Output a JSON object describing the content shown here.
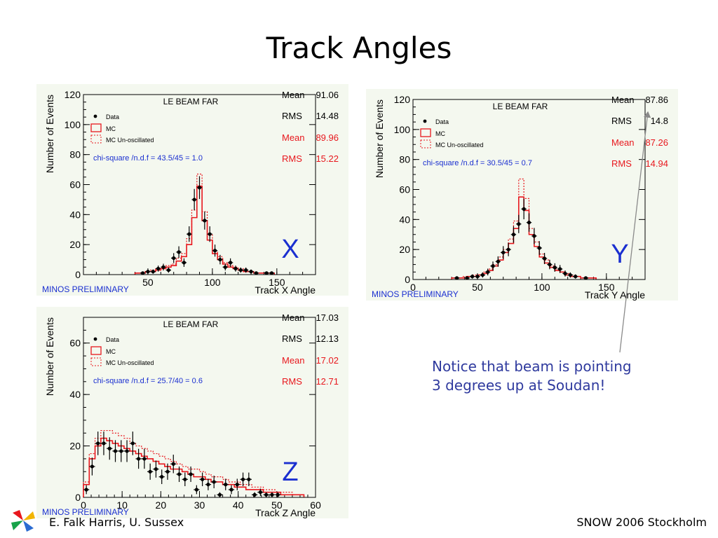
{
  "slide": {
    "title": "Track Angles",
    "note_line1": "Notice that beam is pointing",
    "note_line2": "3 degrees up at Soudan!",
    "footer_left": "E. Falk Harris, U. Sussex",
    "footer_right": "SNOW 2006 Stockholm"
  },
  "colors": {
    "data": "#000000",
    "mc": "#e8171d",
    "stats_blue": "#1a2fd0",
    "note": "#2f3a9e",
    "plot_bg": "#f4f8ef"
  },
  "chart_data": [
    {
      "type": "bar",
      "id": "x",
      "title": "LE BEAM FAR",
      "xlabel": "Track X Angle",
      "ylabel": "Number of Events",
      "big_label": "X",
      "preliminary": "MINOS PRELIMINARY",
      "xlim": [
        0,
        180
      ],
      "ylim": [
        0,
        120
      ],
      "xticks": [
        0,
        50,
        100,
        150
      ],
      "xtick_labels": [
        "",
        "50",
        "100",
        "150"
      ],
      "yticks": [
        0,
        20,
        40,
        60,
        80,
        100,
        120
      ],
      "legend": [
        "Data",
        "MC",
        "MC Un-oscillated"
      ],
      "chi_square": "chi-square /n.d.f =  43.5/45 =   1.0",
      "stats": {
        "mean_label": "Mean",
        "mean": "91.06",
        "rms_label": "RMS",
        "rms": "14.48",
        "mc_mean_label": "Mean",
        "mc_mean": "89.96",
        "mc_rms_label": "RMS",
        "mc_rms": "15.22"
      },
      "bin_width": 4,
      "data_x": [
        46,
        50,
        54,
        58,
        62,
        66,
        70,
        74,
        78,
        82,
        86,
        90,
        94,
        98,
        102,
        106,
        110,
        114,
        118,
        122,
        126,
        130,
        134,
        142,
        146
      ],
      "data_y": [
        1,
        2,
        2,
        4,
        5,
        3,
        11,
        15,
        8,
        27,
        50,
        58,
        36,
        27,
        16,
        10,
        5,
        8,
        4,
        3,
        3,
        2,
        1,
        1,
        1
      ],
      "mc_edges": [
        40,
        44,
        48,
        52,
        56,
        60,
        64,
        68,
        72,
        76,
        80,
        84,
        88,
        92,
        96,
        100,
        104,
        108,
        112,
        116,
        120,
        124,
        128,
        132,
        136,
        140,
        144,
        148
      ],
      "mc_values": [
        1,
        1,
        2,
        2,
        3,
        4,
        5,
        6,
        9,
        12,
        20,
        38,
        59,
        36,
        23,
        14,
        10,
        7,
        5,
        4,
        3,
        2,
        2,
        1,
        1,
        1,
        1
      ],
      "unosc_values": [
        1,
        1,
        2,
        3,
        4,
        5,
        6,
        7,
        11,
        14,
        24,
        43,
        67,
        42,
        27,
        16,
        12,
        8,
        6,
        5,
        4,
        3,
        2,
        1,
        1,
        1,
        1
      ]
    },
    {
      "type": "bar",
      "id": "y",
      "title": "LE BEAM FAR",
      "xlabel": "Track Y Angle",
      "ylabel": "Number of Events",
      "big_label": "Y",
      "preliminary": "MINOS PRELIMINARY",
      "xlim": [
        0,
        180
      ],
      "ylim": [
        0,
        120
      ],
      "xticks": [
        0,
        50,
        100,
        150
      ],
      "xtick_labels": [
        "0",
        "50",
        "100",
        "150"
      ],
      "yticks": [
        0,
        20,
        40,
        60,
        80,
        100,
        120
      ],
      "legend": [
        "Data",
        "MC",
        "MC Un-oscillated"
      ],
      "chi_square": "chi-square /n.d.f =  30.5/45 =   0.7",
      "stats": {
        "mean_label": "Mean",
        "mean": "87.86",
        "rms_label": "RMS",
        "rms": "14.8",
        "mc_mean_label": "Mean",
        "mc_mean": "87.26",
        "mc_rms_label": "RMS",
        "mc_rms": "14.94"
      },
      "bin_width": 4,
      "data_x": [
        34,
        42,
        46,
        50,
        54,
        58,
        62,
        66,
        70,
        74,
        78,
        82,
        86,
        90,
        94,
        98,
        102,
        106,
        110,
        114,
        118,
        122,
        126,
        134
      ],
      "data_y": [
        1,
        1,
        2,
        2,
        3,
        5,
        9,
        12,
        18,
        20,
        30,
        37,
        47,
        38,
        29,
        21,
        14,
        10,
        8,
        7,
        4,
        3,
        2,
        1
      ],
      "mc_edges": [
        30,
        34,
        38,
        42,
        46,
        50,
        54,
        58,
        62,
        66,
        70,
        74,
        78,
        82,
        86,
        90,
        94,
        98,
        102,
        106,
        110,
        114,
        118,
        122,
        126,
        130,
        134,
        138,
        142
      ],
      "mc_values": [
        1,
        1,
        1,
        2,
        2,
        3,
        4,
        6,
        9,
        13,
        18,
        24,
        34,
        55,
        46,
        30,
        22,
        15,
        11,
        8,
        6,
        5,
        3,
        2,
        2,
        1,
        1,
        1
      ],
      "unosc_values": [
        1,
        1,
        2,
        2,
        3,
        3,
        5,
        7,
        10,
        15,
        20,
        27,
        39,
        67,
        54,
        34,
        25,
        17,
        13,
        9,
        7,
        5,
        4,
        3,
        2,
        1,
        1,
        1
      ]
    },
    {
      "type": "bar",
      "id": "z",
      "title": "LE BEAM FAR",
      "xlabel": "Track Z Angle",
      "ylabel": "Number of Events",
      "big_label": "Z",
      "preliminary": "MINOS PRELIMINARY",
      "xlim": [
        0,
        60
      ],
      "ylim": [
        0,
        70
      ],
      "xticks": [
        0,
        10,
        20,
        30,
        40,
        50,
        60
      ],
      "xtick_labels": [
        "0",
        "10",
        "20",
        "30",
        "40",
        "50",
        "60"
      ],
      "yticks": [
        0,
        20,
        40,
        60
      ],
      "legend": [
        "Data",
        "MC",
        "MC Un-oscillated"
      ],
      "chi_square": "chi-square /n.d.f =  25.7/40 =   0.6",
      "stats": {
        "mean_label": "Mean",
        "mean": "17.03",
        "rms_label": "RMS",
        "rms": "12.13",
        "mc_mean_label": "Mean",
        "mc_mean": "17.02",
        "mc_rms_label": "RMS",
        "mc_rms": "12.71"
      },
      "bin_width": 1.5,
      "data_x": [
        0.75,
        2.25,
        3.75,
        5.25,
        6.75,
        8.25,
        9.75,
        11.25,
        12.75,
        14.25,
        15.75,
        17.25,
        18.75,
        20.25,
        21.75,
        23.25,
        24.75,
        26.25,
        27.75,
        29.25,
        30.75,
        32.25,
        33.75,
        35.25,
        36.75,
        38.25,
        39.75,
        41.25,
        42.75,
        44.25,
        45.75,
        47.25,
        48.75,
        50.25
      ],
      "data_y": [
        3,
        12,
        21,
        21,
        19,
        18,
        18,
        18,
        21,
        15,
        15,
        10,
        11,
        8,
        10,
        13,
        9,
        7,
        9,
        3,
        7,
        5,
        6,
        1,
        5,
        3,
        5,
        7,
        7,
        1,
        2,
        1,
        1,
        1
      ],
      "mc_edges": [
        0,
        1.5,
        3,
        4.5,
        6,
        7.5,
        9,
        10.5,
        12,
        13.5,
        15,
        16.5,
        18,
        19.5,
        21,
        22.5,
        24,
        25.5,
        27,
        28.5,
        30,
        31.5,
        33,
        34.5,
        36,
        37.5,
        39,
        40.5,
        42,
        43.5,
        45,
        46.5,
        48,
        49.5,
        51,
        52.5,
        54,
        55.5,
        57
      ],
      "mc_values": [
        5,
        15,
        20,
        23,
        22,
        21,
        20,
        19,
        18,
        17,
        16,
        15,
        14,
        13,
        12,
        11,
        11,
        10,
        9,
        8,
        8,
        7,
        6,
        6,
        5,
        5,
        4,
        4,
        3,
        3,
        3,
        2,
        2,
        2,
        1,
        1,
        1,
        1
      ],
      "unosc_values": [
        6,
        17,
        23,
        26,
        26,
        25,
        24,
        23,
        21,
        20,
        19,
        18,
        17,
        16,
        15,
        14,
        13,
        12,
        11,
        11,
        10,
        9,
        8,
        8,
        7,
        6,
        6,
        5,
        5,
        4,
        4,
        3,
        3,
        2,
        2,
        2,
        1,
        1
      ]
    }
  ]
}
